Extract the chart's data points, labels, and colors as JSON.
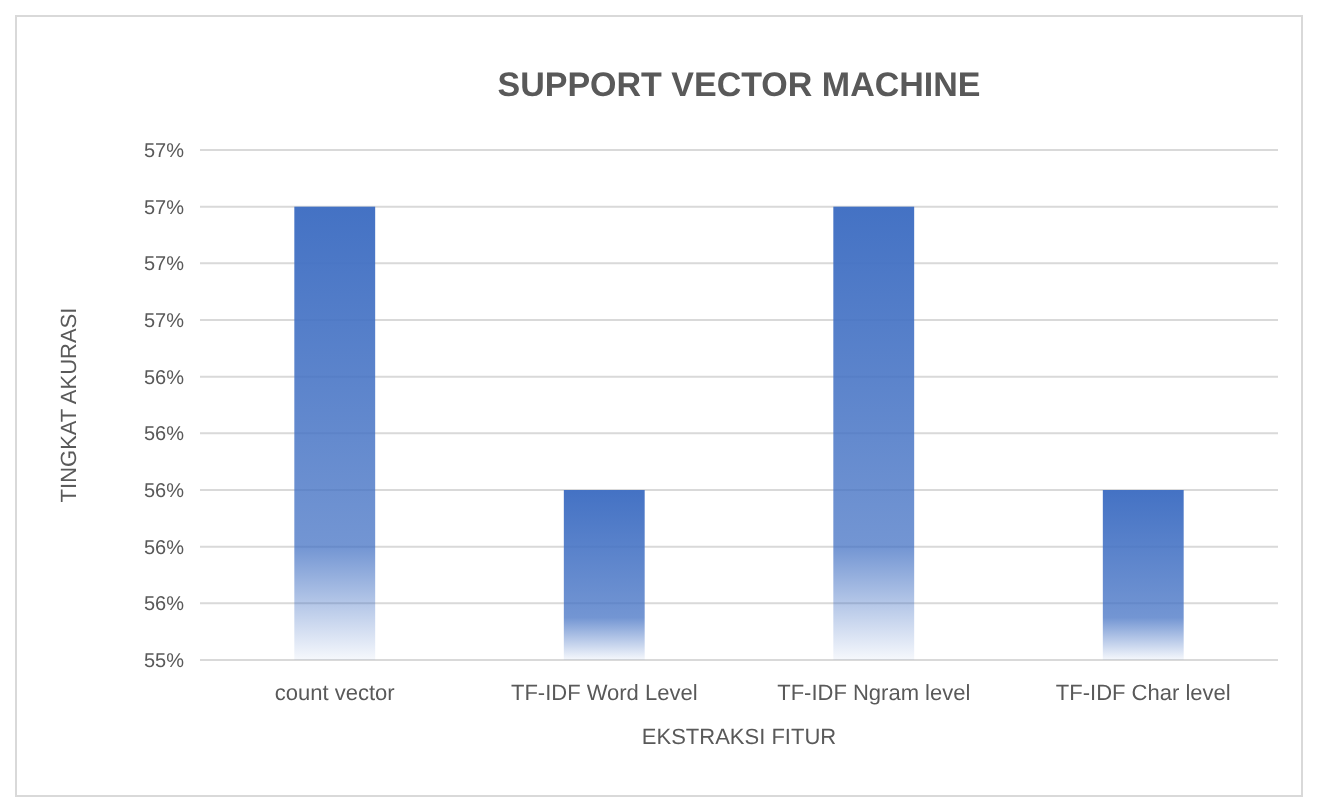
{
  "chart_data": {
    "type": "bar",
    "title": "SUPPORT VECTOR MACHINE",
    "xlabel": "EKSTRAKSI FITUR",
    "ylabel": "TINGKAT AKURASI",
    "categories": [
      "count vector",
      "TF-IDF Word Level",
      "TF-IDF Ngram level",
      "TF-IDF Char level"
    ],
    "values": [
      57.0,
      56.0,
      57.0,
      56.0
    ],
    "color": "#4472c4",
    "ylim": [
      55.4,
      57.2
    ],
    "yticks": [
      {
        "value": 55.4,
        "label": "55%"
      },
      {
        "value": 55.6,
        "label": "56%"
      },
      {
        "value": 55.8,
        "label": "56%"
      },
      {
        "value": 56.0,
        "label": "56%"
      },
      {
        "value": 56.2,
        "label": "56%"
      },
      {
        "value": 56.4,
        "label": "56%"
      },
      {
        "value": 56.6,
        "label": "57%"
      },
      {
        "value": 56.8,
        "label": "57%"
      },
      {
        "value": 57.0,
        "label": "57%"
      },
      {
        "value": 57.2,
        "label": "57%"
      }
    ],
    "grid": "y"
  }
}
